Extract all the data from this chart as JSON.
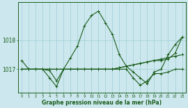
{
  "xlabel": "Graphe pression niveau de la mer (hPa)",
  "background_color": "#cce8ee",
  "grid_color": "#9fcdd6",
  "line_color": "#1a5c1a",
  "text_color": "#1a5c1a",
  "hours": [
    0,
    1,
    2,
    3,
    4,
    5,
    6,
    7,
    8,
    9,
    10,
    11,
    12,
    13,
    14,
    15,
    16,
    17,
    18,
    19,
    20,
    21,
    22,
    23
  ],
  "series": [
    [
      1017.3,
      1017.0,
      1017.0,
      1017.0,
      1016.7,
      1016.4,
      1017.0,
      1017.4,
      1017.8,
      1018.5,
      1018.85,
      1019.0,
      1018.6,
      1018.2,
      1017.5,
      1017.1,
      1016.9,
      1016.7,
      1016.5,
      1016.9,
      1017.0,
      1017.5,
      1017.85,
      1018.1
    ],
    [
      1017.0,
      1017.0,
      1017.0,
      1017.0,
      1016.95,
      1016.6,
      1017.0,
      1017.0,
      1017.0,
      1017.0,
      1017.0,
      1017.0,
      1017.0,
      1017.0,
      1017.05,
      1017.1,
      1017.15,
      1017.2,
      1017.25,
      1017.3,
      1017.35,
      1017.4,
      1017.45,
      1017.5
    ],
    [
      1017.0,
      1017.0,
      1017.0,
      1017.0,
      1017.0,
      1017.0,
      1017.0,
      1017.0,
      1017.0,
      1017.0,
      1017.0,
      1017.0,
      1017.0,
      1017.0,
      1017.0,
      1017.0,
      1016.7,
      1016.45,
      1016.6,
      1016.85,
      1016.85,
      1016.9,
      1017.0,
      1017.0
    ],
    [
      1017.0,
      1017.0,
      1017.0,
      1017.0,
      1017.0,
      1017.0,
      1017.0,
      1017.0,
      1017.0,
      1017.0,
      1017.0,
      1017.0,
      1017.0,
      1017.0,
      1017.05,
      1017.1,
      1017.15,
      1017.2,
      1017.25,
      1017.3,
      1017.3,
      1017.35,
      1017.55,
      1018.1
    ]
  ],
  "ylim": [
    1016.2,
    1019.3
  ],
  "yticks": [
    1017,
    1018
  ],
  "xticks": [
    0,
    1,
    2,
    3,
    4,
    5,
    6,
    7,
    8,
    9,
    10,
    11,
    12,
    13,
    14,
    15,
    16,
    17,
    18,
    19,
    20,
    21,
    22,
    23
  ],
  "markersize": 3,
  "linewidth": 0.8
}
